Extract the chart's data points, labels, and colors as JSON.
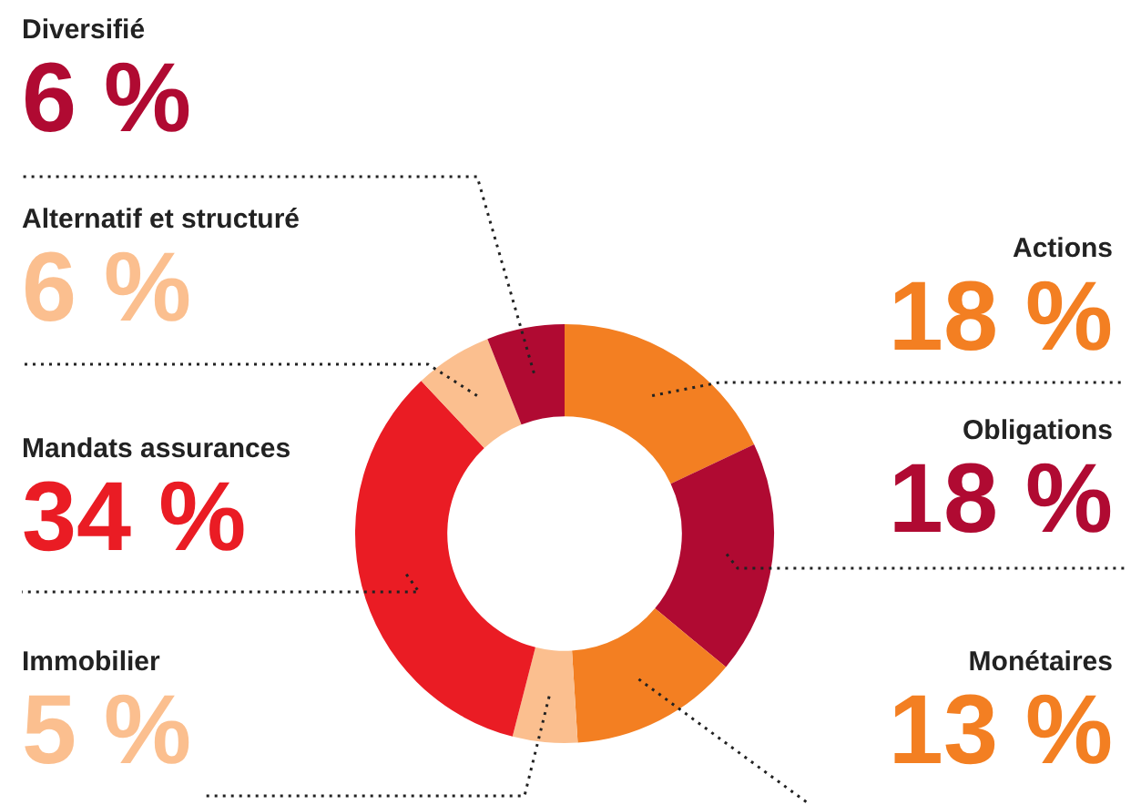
{
  "chart_data": {
    "type": "donut",
    "categories": [
      "Actions",
      "Obligations",
      "Monétaires",
      "Immobilier",
      "Mandats assurances",
      "Alternatif et structuré",
      "Diversifié"
    ],
    "values": [
      18,
      18,
      13,
      5,
      34,
      6,
      6
    ],
    "colors": [
      "#f37f22",
      "#b00a32",
      "#f37f22",
      "#fbbf8f",
      "#ea1c24",
      "#fbbf8f",
      "#b00a32"
    ],
    "value_labels": [
      "18 %",
      "18 %",
      "13 %",
      "5 %",
      "34 %",
      "6 %",
      "6 %"
    ],
    "legend": false
  }
}
